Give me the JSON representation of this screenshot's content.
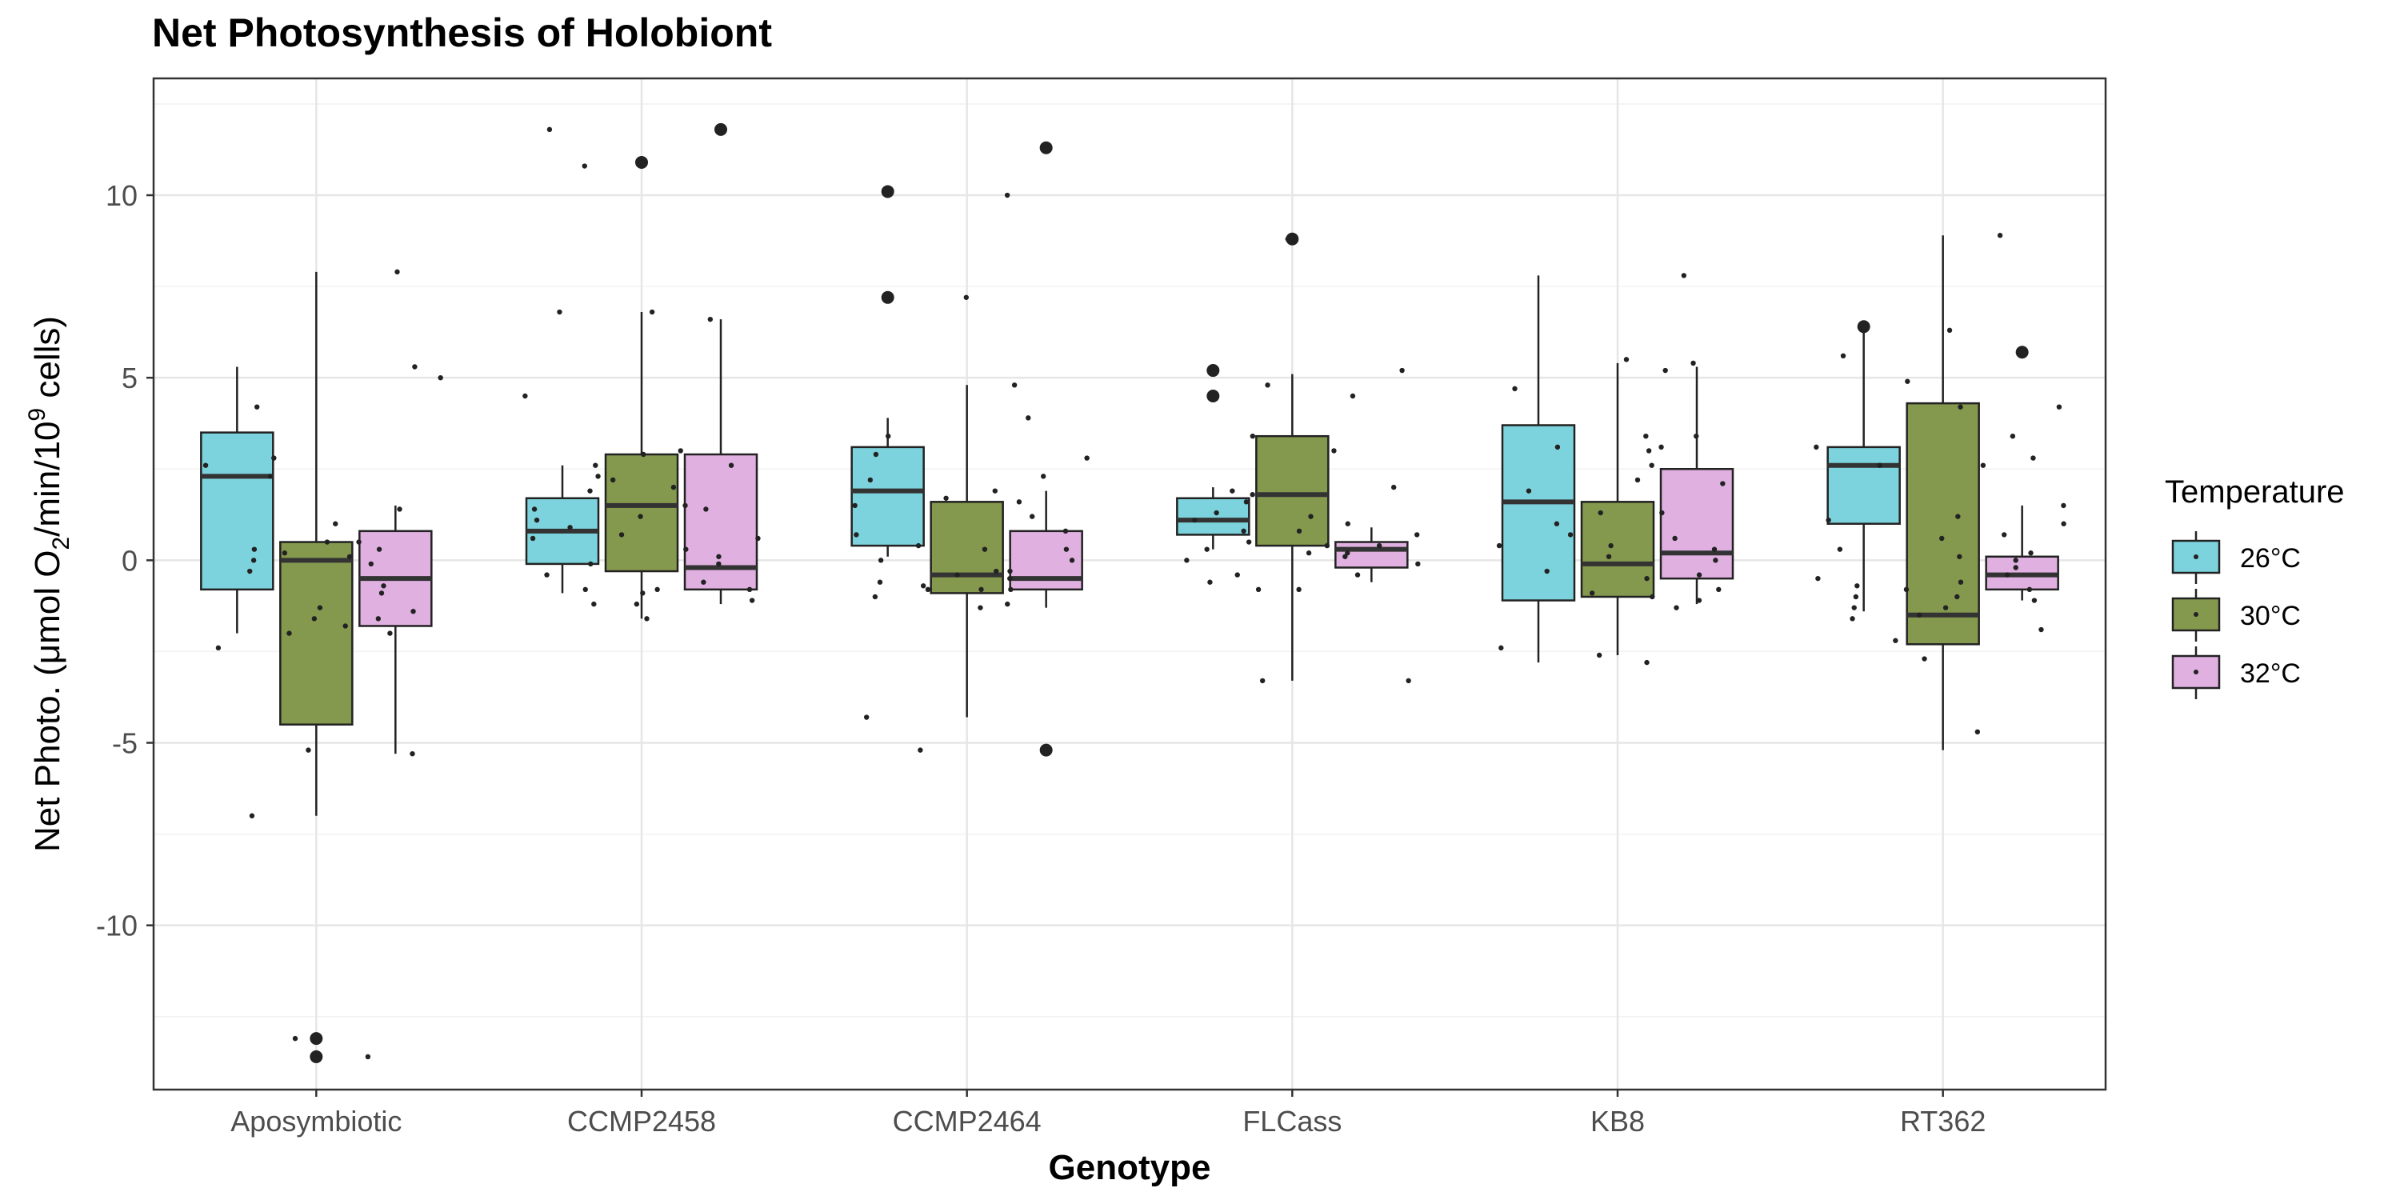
{
  "chart_data": {
    "type": "boxplot",
    "title": "Net Photosynthesis of Holobiont",
    "xlabel": "Genotype",
    "ylabel": {
      "prefix": "Net Photo. (μmol O",
      "sub": "2",
      "mid": "/min/10",
      "sup": "9",
      "suffix": " cells)"
    },
    "ylim": [
      -14.5,
      13.2
    ],
    "yticks": [
      -10,
      -5,
      0,
      5,
      10
    ],
    "ytick_labels": [
      "-10",
      "-5",
      "0",
      "5",
      "10"
    ],
    "grid": true,
    "legend": {
      "title": "Temperature",
      "position": "right"
    },
    "colors": {
      "26°C": "#7dd3dd",
      "30°C": "#85994e",
      "32°C": "#dfb0e0",
      "point": "#222222",
      "median": "#333333"
    },
    "categories": [
      "Aposymbiotic",
      "CCMP2458",
      "CCMP2464",
      "FLCass",
      "KB8",
      "RT362"
    ],
    "series": [
      {
        "name": "26°C",
        "boxes": [
          {
            "q1": -0.8,
            "median": 2.3,
            "q3": 3.5,
            "whisker_low": -2.0,
            "whisker_high": 5.3,
            "outliers": []
          },
          {
            "q1": -0.1,
            "median": 0.8,
            "q3": 1.7,
            "whisker_low": -0.9,
            "whisker_high": 2.6,
            "outliers": []
          },
          {
            "q1": 0.4,
            "median": 1.9,
            "q3": 3.1,
            "whisker_low": 0.1,
            "whisker_high": 3.9,
            "outliers": [
              10.1,
              7.2
            ]
          },
          {
            "q1": 0.7,
            "median": 1.1,
            "q3": 1.7,
            "whisker_low": 0.3,
            "whisker_high": 2.0,
            "outliers": [
              5.2,
              4.5
            ]
          },
          {
            "q1": -1.1,
            "median": 1.6,
            "q3": 3.7,
            "whisker_low": -2.8,
            "whisker_high": 7.8,
            "outliers": []
          },
          {
            "q1": 1.0,
            "median": 2.6,
            "q3": 3.1,
            "whisker_low": -1.4,
            "whisker_high": 6.4,
            "outliers": [
              6.4
            ]
          }
        ],
        "points": [
          [
            -7.0,
            -2.4,
            -0.3,
            0.2,
            0.3,
            0.0,
            2.6,
            2.8,
            4.2
          ],
          [
            -1.2,
            -0.8,
            -0.4,
            -0.1,
            0.6,
            0.9,
            1.1,
            1.4,
            1.9,
            2.3,
            2.6,
            4.5,
            6.8,
            10.8,
            11.8
          ],
          [
            -4.3,
            -1.0,
            -0.8,
            -0.7,
            -0.6,
            0.0,
            0.4,
            0.7,
            1.5,
            2.2,
            2.9,
            3.4
          ],
          [
            -0.8,
            -0.6,
            -0.4,
            0.0,
            0.3,
            0.5,
            0.8,
            1.1,
            1.3,
            1.6,
            1.9
          ],
          [
            -2.4,
            -0.3,
            0.4,
            1.0,
            1.9,
            3.1,
            4.7
          ],
          [
            -1.6,
            -1.3,
            -1.0,
            -0.8,
            -0.7,
            -0.5,
            0.3,
            1.1,
            2.6,
            3.1,
            5.6
          ]
        ]
      },
      {
        "name": "30°C",
        "boxes": [
          {
            "q1": -4.5,
            "median": 0.0,
            "q3": 0.5,
            "whisker_low": -7.0,
            "whisker_high": 7.9,
            "outliers": [
              -13.1,
              -13.6
            ]
          },
          {
            "q1": -0.3,
            "median": 1.5,
            "q3": 2.9,
            "whisker_low": -1.6,
            "whisker_high": 6.8,
            "outliers": [
              10.9
            ]
          },
          {
            "q1": -0.9,
            "median": -0.4,
            "q3": 1.6,
            "whisker_low": -4.3,
            "whisker_high": 4.8,
            "outliers": []
          },
          {
            "q1": 0.4,
            "median": 1.8,
            "q3": 3.4,
            "whisker_low": -3.3,
            "whisker_high": 5.1,
            "outliers": [
              8.8
            ]
          },
          {
            "q1": -1.0,
            "median": -0.1,
            "q3": 1.6,
            "whisker_low": -2.6,
            "whisker_high": 5.4,
            "outliers": []
          },
          {
            "q1": -2.3,
            "median": -1.5,
            "q3": 4.3,
            "whisker_low": -5.2,
            "whisker_high": 8.9,
            "outliers": []
          }
        ],
        "points": [
          [
            -13.1,
            -5.2,
            -2.0,
            -1.8,
            -1.6,
            -1.3,
            0.1,
            0.5,
            1.0,
            2.3
          ],
          [
            -1.6,
            -1.2,
            -0.9,
            -0.8,
            0.7,
            1.2,
            1.5,
            2.2,
            2.9,
            3.0,
            6.8
          ],
          [
            -5.2,
            -1.3,
            -0.8,
            -0.4,
            -0.3,
            0.3,
            1.7,
            1.9,
            4.8,
            7.2
          ],
          [
            -3.3,
            -0.8,
            0.2,
            0.4,
            0.8,
            1.2,
            1.8,
            3.0,
            3.4,
            4.8,
            8.8
          ],
          [
            -2.8,
            -2.6,
            -1.0,
            -0.9,
            -0.5,
            0.1,
            0.4,
            0.7,
            1.3,
            2.2,
            3.0,
            3.4,
            5.2,
            5.5
          ],
          [
            -4.7,
            -2.7,
            -2.2,
            -1.5,
            -1.3,
            -1.0,
            -0.6,
            0.1,
            0.6,
            1.2,
            2.6,
            4.2,
            4.9,
            6.3
          ]
        ]
      },
      {
        "name": "32°C",
        "boxes": [
          {
            "q1": -1.8,
            "median": -0.5,
            "q3": 0.8,
            "whisker_low": -5.3,
            "whisker_high": 1.5,
            "outliers": []
          },
          {
            "q1": -0.8,
            "median": -0.2,
            "q3": 2.9,
            "whisker_low": -1.2,
            "whisker_high": 6.6,
            "outliers": [
              11.8
            ]
          },
          {
            "q1": -0.8,
            "median": -0.5,
            "q3": 0.8,
            "whisker_low": -1.3,
            "whisker_high": 1.9,
            "outliers": [
              11.3,
              -5.2
            ]
          },
          {
            "q1": -0.2,
            "median": 0.3,
            "q3": 0.5,
            "whisker_low": -0.6,
            "whisker_high": 0.9,
            "outliers": []
          },
          {
            "q1": -0.5,
            "median": 0.2,
            "q3": 2.5,
            "whisker_low": -1.2,
            "whisker_high": 5.3,
            "outliers": []
          },
          {
            "q1": -0.8,
            "median": -0.4,
            "q3": 0.1,
            "whisker_low": -1.1,
            "whisker_high": 1.5,
            "outliers": [
              5.7
            ]
          }
        ],
        "points": [
          [
            -13.6,
            -5.3,
            -2.0,
            -1.6,
            -1.4,
            -0.9,
            -0.7,
            -0.1,
            0.3,
            0.5,
            1.4,
            5.0,
            5.3,
            7.9
          ],
          [
            -1.1,
            -0.8,
            -0.6,
            -0.1,
            0.1,
            0.3,
            0.6,
            1.4,
            2.0,
            2.6,
            6.6
          ],
          [
            -1.2,
            -0.8,
            -0.5,
            -0.3,
            0.0,
            0.3,
            0.8,
            1.2,
            1.6,
            2.3,
            2.8,
            3.9,
            10.0
          ],
          [
            -3.3,
            -0.4,
            -0.1,
            0.1,
            0.2,
            0.4,
            0.7,
            1.0,
            2.0,
            4.5,
            5.2
          ],
          [
            -1.3,
            -1.1,
            -0.8,
            -0.4,
            0.0,
            0.3,
            0.6,
            1.3,
            2.1,
            2.6,
            3.1,
            3.4,
            5.4,
            7.8
          ],
          [
            -1.9,
            -1.1,
            -0.8,
            -0.4,
            -0.2,
            0.0,
            0.2,
            0.7,
            1.0,
            1.5,
            2.8,
            3.4,
            4.2,
            8.9
          ]
        ]
      }
    ]
  }
}
